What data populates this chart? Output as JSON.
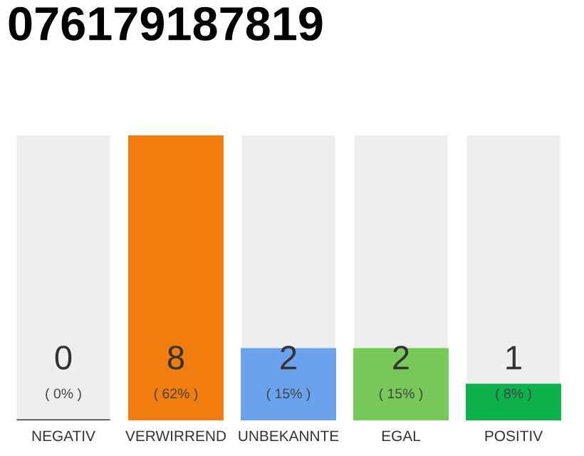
{
  "chart_data": {
    "type": "bar",
    "title": "076179187819",
    "categories": [
      "NEGATIV",
      "VERWIRREND",
      "UNBEKANNTE",
      "EGAL",
      "POSITIV"
    ],
    "values": [
      0,
      8,
      2,
      2,
      1
    ],
    "colors": [
      "#333333",
      "#f07d0e",
      "#6aa2ec",
      "#77c95a",
      "#0db14b"
    ],
    "data_labels": true,
    "annotations": [
      "( 0% )",
      "( 62% )",
      "( 15% )",
      "( 15% )",
      "( 8% )"
    ],
    "grid": false,
    "legend": false
  }
}
